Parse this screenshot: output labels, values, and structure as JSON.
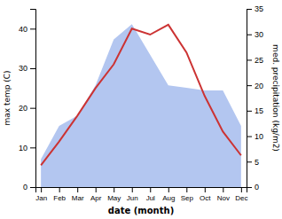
{
  "chart_data": {
    "type": "line",
    "categories": [
      "Jan",
      "Feb",
      "Mar",
      "Apr",
      "May",
      "Jun",
      "Jul",
      "Aug",
      "Sep",
      "Oct",
      "Nov",
      "Dec"
    ],
    "xlabel": "date (month)",
    "ylabel": "max temp (C)",
    "y2label": "med. precipitation (kg/m2)",
    "series": [
      {
        "type": "area",
        "axis": "y2",
        "color": "#b3c6f0",
        "values": [
          5.5,
          12.0,
          14.0,
          20.0,
          29.0,
          32.0,
          26.0,
          20.0,
          19.5,
          19.0,
          19.0,
          12.0
        ]
      },
      {
        "type": "line",
        "color": "#cc3333",
        "values": [
          5.5,
          11.5,
          18.0,
          25.0,
          31.0,
          40.0,
          38.5,
          41.0,
          34.0,
          23.0,
          14.0,
          8.0
        ]
      }
    ],
    "ylim": [
      0,
      45
    ],
    "yticks": [
      0,
      10,
      20,
      30,
      40
    ],
    "y2lim": [
      0,
      35
    ],
    "y2ticks": [
      0,
      5,
      10,
      15,
      20,
      25,
      30,
      35
    ]
  }
}
